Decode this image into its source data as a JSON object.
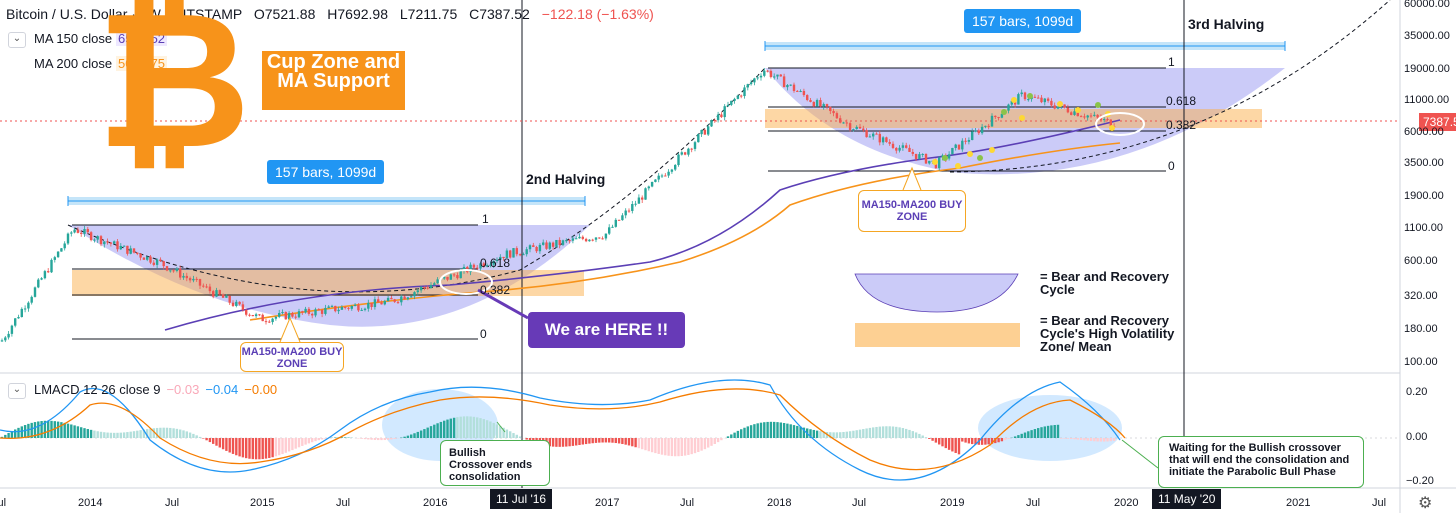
{
  "header": {
    "symbol": "Bitcoin / U.S. Dollar · 1W · BITSTAMP",
    "open": "O7521.88",
    "high": "H7692.98",
    "low": "L7211.75",
    "close": "C7387.52",
    "change": "−122.18 (−1.63%)"
  },
  "indicators": {
    "ma150_label": "MA 150 close",
    "ma150_value": "6527.52",
    "ma200_label": "MA 200 close",
    "ma200_value": "5056.75",
    "macd_label": "LMACD 12 26 close 9",
    "macd_hist": "−0.03",
    "macd_line": "−0.04",
    "macd_signal": "−0.00"
  },
  "annotations": {
    "cup_zone": "Cup Zone and MA Support",
    "bars_left": "157 bars, 1099d",
    "bars_right": "157 bars, 1099d",
    "second_halving": "2nd Halving",
    "third_halving": "3rd Halving",
    "we_are_here": "We are HERE !!",
    "buy_zone_left": "MA150-MA200 BUY ZONE",
    "buy_zone_right": "MA150-MA200 BUY ZONE",
    "bullish_crossover": "Bullish Crossover ends consolidation",
    "waiting_text": "Waiting for the Bullish crossover that will end the consolidation and initiate the Parabolic Bull Phase",
    "legend_bear": "= Bear and Recovery Cycle",
    "legend_volatility": "= Bear and Recovery Cycle's High Volatility Zone/ Mean",
    "fib_left": [
      "1",
      "0.618",
      "0.382",
      "0"
    ],
    "fib_right": [
      "1",
      "0.618",
      "0.382",
      "0"
    ],
    "time_badge_left": "11 Jul '16",
    "time_badge_right": "11 May '20",
    "current_price": "7387.52",
    "bitcoin_logo": "₿"
  },
  "price_axis": [
    "60000.00",
    "35000.00",
    "19000.00",
    "11000.00",
    "6000.00",
    "3500.00",
    "1900.00",
    "1100.00",
    "600.00",
    "320.00",
    "180.00",
    "100.00"
  ],
  "macd_axis": [
    "0.20",
    "0.00",
    "−0.20"
  ],
  "time_axis": [
    "Jul",
    "2014",
    "Jul",
    "2015",
    "Jul",
    "2016",
    "2017",
    "Jul",
    "2018",
    "Jul",
    "2019",
    "Jul",
    "2020",
    "2021",
    "Jul"
  ],
  "colors": {
    "bull": "#26a69a",
    "bear": "#ef5350",
    "ma150": "#5b3fb5",
    "ma200": "#f7931a",
    "cup": "#8c8cf0",
    "zone": "#fbb04b",
    "macd": "#2196f3",
    "signal": "#f57c00"
  },
  "chart_data": {
    "type": "candlestick",
    "title": "Bitcoin / U.S. Dollar · 1W · BITSTAMP",
    "yscale": "log",
    "ylim": [
      80,
      65000
    ],
    "series_approx": [
      {
        "date": "2013-06",
        "price": 100
      },
      {
        "date": "2013-12",
        "price": 1100
      },
      {
        "date": "2014-06",
        "price": 600
      },
      {
        "date": "2015-01",
        "price": 220
      },
      {
        "date": "2015-10",
        "price": 300
      },
      {
        "date": "2016-06",
        "price": 700
      },
      {
        "date": "2017-01",
        "price": 1000
      },
      {
        "date": "2017-12",
        "price": 19000
      },
      {
        "date": "2018-06",
        "price": 7000
      },
      {
        "date": "2018-12",
        "price": 3500
      },
      {
        "date": "2019-06",
        "price": 12000
      },
      {
        "date": "2019-12",
        "price": 7387.52
      }
    ],
    "macd_range": [
      -0.2,
      0.2
    ]
  }
}
